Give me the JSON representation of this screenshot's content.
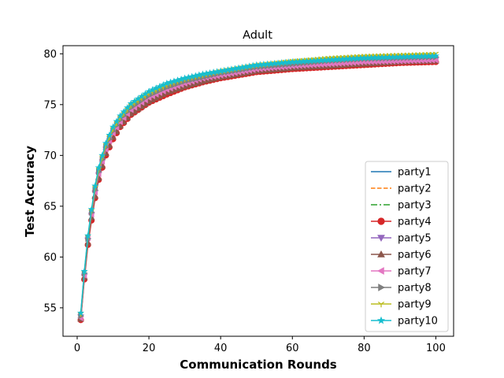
{
  "chart_data": {
    "type": "line",
    "title": "Adult",
    "xlabel": "Communication Rounds",
    "ylabel": "Test Accuracy",
    "xlim": [
      -3.95,
      104.95
    ],
    "ylim": [
      52.2,
      80.8
    ],
    "x_ticks": [
      0,
      20,
      40,
      60,
      80,
      100
    ],
    "y_ticks": [
      55,
      60,
      65,
      70,
      75,
      80
    ],
    "grid": false,
    "legend_position": "bottom-right",
    "rounds": 100,
    "series": [
      {
        "name": "party1",
        "color": "#1f77b4",
        "dash": "solid",
        "marker": "none",
        "anchors": [
          [
            1,
            54.0
          ],
          [
            2,
            58.2
          ],
          [
            3,
            61.5
          ],
          [
            4,
            64.0
          ],
          [
            5,
            66.2
          ],
          [
            6,
            68.0
          ],
          [
            8,
            70.5
          ],
          [
            10,
            72.1
          ],
          [
            12,
            73.2
          ],
          [
            15,
            74.4
          ],
          [
            20,
            75.6
          ],
          [
            25,
            76.3
          ],
          [
            30,
            76.9
          ],
          [
            35,
            77.4
          ],
          [
            40,
            77.8
          ],
          [
            50,
            78.4
          ],
          [
            60,
            78.8
          ],
          [
            70,
            79.1
          ],
          [
            80,
            79.3
          ],
          [
            90,
            79.4
          ],
          [
            100,
            79.5
          ]
        ]
      },
      {
        "name": "party2",
        "color": "#ff7f0e",
        "dash": "dashed",
        "marker": "none",
        "anchors": [
          [
            1,
            54.2
          ],
          [
            2,
            58.3
          ],
          [
            3,
            61.7
          ],
          [
            4,
            64.3
          ],
          [
            5,
            66.6
          ],
          [
            6,
            68.4
          ],
          [
            8,
            70.8
          ],
          [
            10,
            72.4
          ],
          [
            12,
            73.5
          ],
          [
            15,
            74.7
          ],
          [
            20,
            75.9
          ],
          [
            25,
            76.7
          ],
          [
            30,
            77.3
          ],
          [
            35,
            77.7
          ],
          [
            40,
            78.1
          ],
          [
            50,
            78.7
          ],
          [
            60,
            79.1
          ],
          [
            70,
            79.4
          ],
          [
            80,
            79.6
          ],
          [
            90,
            79.7
          ],
          [
            100,
            79.8
          ]
        ]
      },
      {
        "name": "party3",
        "color": "#2ca02c",
        "dash": "dashdot",
        "marker": "none",
        "anchors": [
          [
            1,
            54.3
          ],
          [
            2,
            58.4
          ],
          [
            3,
            61.8
          ],
          [
            4,
            64.4
          ],
          [
            5,
            66.7
          ],
          [
            6,
            68.5
          ],
          [
            8,
            70.9
          ],
          [
            10,
            72.5
          ],
          [
            12,
            73.6
          ],
          [
            15,
            74.8
          ],
          [
            20,
            76.0
          ],
          [
            25,
            76.8
          ],
          [
            30,
            77.4
          ],
          [
            35,
            77.8
          ],
          [
            40,
            78.2
          ],
          [
            50,
            78.8
          ],
          [
            60,
            79.2
          ],
          [
            70,
            79.5
          ],
          [
            80,
            79.7
          ],
          [
            90,
            79.8
          ],
          [
            100,
            79.9
          ]
        ]
      },
      {
        "name": "party4",
        "color": "#d62728",
        "dash": "solid",
        "marker": "circle",
        "anchors": [
          [
            1,
            53.8
          ],
          [
            2,
            57.8
          ],
          [
            3,
            61.2
          ],
          [
            4,
            63.6
          ],
          [
            5,
            65.8
          ],
          [
            6,
            67.6
          ],
          [
            8,
            70.0
          ],
          [
            10,
            71.6
          ],
          [
            12,
            72.8
          ],
          [
            15,
            74.0
          ],
          [
            20,
            75.2
          ],
          [
            25,
            76.0
          ],
          [
            30,
            76.7
          ],
          [
            35,
            77.2
          ],
          [
            40,
            77.6
          ],
          [
            50,
            78.2
          ],
          [
            60,
            78.5
          ],
          [
            70,
            78.7
          ],
          [
            80,
            78.9
          ],
          [
            90,
            79.1
          ],
          [
            100,
            79.2
          ]
        ]
      },
      {
        "name": "party5",
        "color": "#9467bd",
        "dash": "solid",
        "marker": "triangle-down",
        "anchors": [
          [
            1,
            54.1
          ],
          [
            2,
            58.1
          ],
          [
            3,
            61.6
          ],
          [
            4,
            64.1
          ],
          [
            5,
            66.3
          ],
          [
            6,
            68.1
          ],
          [
            8,
            70.6
          ],
          [
            10,
            72.2
          ],
          [
            12,
            73.3
          ],
          [
            15,
            74.5
          ],
          [
            20,
            75.7
          ],
          [
            25,
            76.5
          ],
          [
            30,
            77.1
          ],
          [
            35,
            77.6
          ],
          [
            40,
            78.0
          ],
          [
            50,
            78.6
          ],
          [
            60,
            78.9
          ],
          [
            70,
            79.1
          ],
          [
            80,
            79.2
          ],
          [
            90,
            79.3
          ],
          [
            100,
            79.4
          ]
        ]
      },
      {
        "name": "party6",
        "color": "#8c564b",
        "dash": "solid",
        "marker": "triangle-up",
        "anchors": [
          [
            1,
            53.9
          ],
          [
            2,
            58.0
          ],
          [
            3,
            61.4
          ],
          [
            4,
            63.9
          ],
          [
            5,
            66.0
          ],
          [
            6,
            67.8
          ],
          [
            8,
            70.2
          ],
          [
            10,
            71.8
          ],
          [
            12,
            72.9
          ],
          [
            15,
            74.1
          ],
          [
            20,
            75.3
          ],
          [
            25,
            76.2
          ],
          [
            30,
            76.8
          ],
          [
            35,
            77.3
          ],
          [
            40,
            77.7
          ],
          [
            50,
            78.3
          ],
          [
            60,
            78.6
          ],
          [
            70,
            78.8
          ],
          [
            80,
            79.0
          ],
          [
            90,
            79.2
          ],
          [
            100,
            79.3
          ]
        ]
      },
      {
        "name": "party7",
        "color": "#e377c2",
        "dash": "solid",
        "marker": "triangle-left",
        "anchors": [
          [
            1,
            54.0
          ],
          [
            2,
            58.2
          ],
          [
            3,
            61.9
          ],
          [
            4,
            64.2
          ],
          [
            5,
            66.4
          ],
          [
            6,
            68.2
          ],
          [
            8,
            70.6
          ],
          [
            10,
            72.2
          ],
          [
            12,
            73.3
          ],
          [
            15,
            74.5
          ],
          [
            20,
            75.7
          ],
          [
            25,
            76.5
          ],
          [
            30,
            77.1
          ],
          [
            35,
            77.6
          ],
          [
            40,
            77.9
          ],
          [
            50,
            78.5
          ],
          [
            60,
            78.8
          ],
          [
            70,
            79.0
          ],
          [
            80,
            79.2
          ],
          [
            90,
            79.3
          ],
          [
            100,
            79.4
          ]
        ]
      },
      {
        "name": "party8",
        "color": "#7f7f7f",
        "dash": "solid",
        "marker": "triangle-right",
        "anchors": [
          [
            1,
            54.2
          ],
          [
            2,
            58.4
          ],
          [
            3,
            61.8
          ],
          [
            4,
            64.4
          ],
          [
            5,
            66.6
          ],
          [
            6,
            68.4
          ],
          [
            8,
            70.8
          ],
          [
            10,
            72.4
          ],
          [
            12,
            73.5
          ],
          [
            15,
            74.7
          ],
          [
            20,
            75.9
          ],
          [
            25,
            76.7
          ],
          [
            30,
            77.3
          ],
          [
            35,
            77.7
          ],
          [
            40,
            78.1
          ],
          [
            50,
            78.7
          ],
          [
            60,
            79.0
          ],
          [
            70,
            79.3
          ],
          [
            80,
            79.5
          ],
          [
            90,
            79.6
          ],
          [
            100,
            79.7
          ]
        ]
      },
      {
        "name": "party9",
        "color": "#bcbd22",
        "dash": "solid",
        "marker": "tri-down",
        "anchors": [
          [
            1,
            54.4
          ],
          [
            2,
            58.5
          ],
          [
            3,
            62.0
          ],
          [
            4,
            64.5
          ],
          [
            5,
            66.8
          ],
          [
            6,
            68.6
          ],
          [
            8,
            71.0
          ],
          [
            10,
            72.6
          ],
          [
            12,
            73.7
          ],
          [
            15,
            74.9
          ],
          [
            20,
            76.1
          ],
          [
            25,
            76.9
          ],
          [
            30,
            77.5
          ],
          [
            35,
            77.9
          ],
          [
            40,
            78.3
          ],
          [
            50,
            78.9
          ],
          [
            60,
            79.3
          ],
          [
            70,
            79.6
          ],
          [
            80,
            79.8
          ],
          [
            90,
            79.9
          ],
          [
            100,
            80.0
          ]
        ]
      },
      {
        "name": "party10",
        "color": "#17becf",
        "dash": "solid",
        "marker": "star",
        "anchors": [
          [
            1,
            54.5
          ],
          [
            2,
            58.6
          ],
          [
            3,
            62.1
          ],
          [
            4,
            64.7
          ],
          [
            5,
            67.0
          ],
          [
            6,
            68.8
          ],
          [
            8,
            71.2
          ],
          [
            10,
            72.8
          ],
          [
            12,
            73.9
          ],
          [
            15,
            75.1
          ],
          [
            20,
            76.3
          ],
          [
            25,
            77.1
          ],
          [
            30,
            77.6
          ],
          [
            35,
            78.0
          ],
          [
            40,
            78.3
          ],
          [
            50,
            78.9
          ],
          [
            60,
            79.2
          ],
          [
            70,
            79.4
          ],
          [
            80,
            79.6
          ],
          [
            90,
            79.7
          ],
          [
            100,
            79.8
          ]
        ]
      }
    ]
  }
}
